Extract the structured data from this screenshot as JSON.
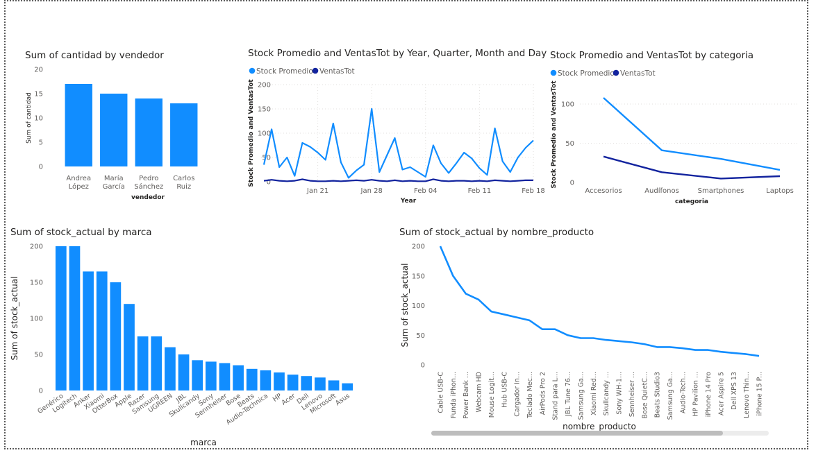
{
  "colors": {
    "series1": "#118DFF",
    "series2": "#12239E",
    "grid": "#e1dfdd",
    "scrollbar": "#bdbdbd",
    "scrolltrack": "#ececec"
  },
  "chart_data": [
    {
      "id": "c1",
      "type": "bar",
      "title": "Sum of cantidad by vendedor",
      "xlabel": "vendedor",
      "ylabel": "Sum of cantidad",
      "ylim": [
        0,
        20
      ],
      "yticks": [
        0,
        5,
        10,
        15,
        20
      ],
      "categories": [
        "Andrea López",
        "María García",
        "Pedro Sánchez",
        "Carlos Ruiz"
      ],
      "category_lines": [
        [
          "Andrea",
          "López"
        ],
        [
          "María",
          "García"
        ],
        [
          "Pedro",
          "Sánchez"
        ],
        [
          "Carlos",
          "Ruiz"
        ]
      ],
      "values": [
        17,
        15,
        14,
        13
      ],
      "grid": false
    },
    {
      "id": "c2",
      "type": "line",
      "title": "Stock Promedio and VentasTot by Year, Quarter, Month and Day",
      "xlabel": "Year",
      "ylabel": "Stock Promedio and VentasTot",
      "ylim": [
        0,
        200
      ],
      "yticks": [
        0,
        50,
        100,
        150,
        200
      ],
      "legend": "top-left",
      "xticks": [
        "Jan 21",
        "Jan 28",
        "Feb 04",
        "Feb 11",
        "Feb 18"
      ],
      "x": [
        "Jan 14",
        "Jan 15",
        "Jan 16",
        "Jan 17",
        "Jan 18",
        "Jan 19",
        "Jan 20",
        "Jan 21",
        "Jan 22",
        "Jan 23",
        "Jan 24",
        "Jan 25",
        "Jan 26",
        "Jan 27",
        "Jan 28",
        "Jan 29",
        "Jan 30",
        "Jan 31",
        "Feb 01",
        "Feb 02",
        "Feb 03",
        "Feb 04",
        "Feb 05",
        "Feb 06",
        "Feb 07",
        "Feb 08",
        "Feb 09",
        "Feb 10",
        "Feb 11",
        "Feb 12",
        "Feb 13",
        "Feb 14",
        "Feb 15",
        "Feb 16",
        "Feb 17",
        "Feb 18"
      ],
      "series": [
        {
          "name": "Stock Promedio",
          "color": "#118DFF",
          "values": [
            35,
            108,
            30,
            50,
            12,
            80,
            72,
            60,
            45,
            120,
            40,
            8,
            23,
            35,
            150,
            20,
            55,
            90,
            25,
            30,
            20,
            10,
            75,
            38,
            18,
            38,
            60,
            48,
            28,
            14,
            110,
            42,
            20,
            50,
            70,
            85
          ]
        },
        {
          "name": "VentasTot",
          "color": "#12239E",
          "values": [
            2,
            4,
            2,
            1,
            2,
            5,
            2,
            1,
            1,
            2,
            1,
            2,
            3,
            2,
            4,
            2,
            1,
            3,
            1,
            2,
            1,
            1,
            5,
            2,
            1,
            2,
            2,
            1,
            2,
            1,
            3,
            2,
            1,
            2,
            3,
            3
          ]
        }
      ],
      "grid": true
    },
    {
      "id": "c3",
      "type": "line",
      "title": "Stock Promedio and VentasTot by categoria",
      "xlabel": "categoria",
      "ylabel": "Stock Promedio and VentasTot",
      "ylim": [
        0,
        120
      ],
      "yticks": [
        0,
        50,
        100
      ],
      "legend": "top-left",
      "categories": [
        "Accesorios",
        "Audífonos",
        "Smartphones",
        "Laptops"
      ],
      "series": [
        {
          "name": "Stock Promedio",
          "color": "#118DFF",
          "values": [
            108,
            41,
            30,
            16
          ]
        },
        {
          "name": "VentasTot",
          "color": "#12239E",
          "values": [
            33,
            13,
            5,
            8
          ]
        }
      ],
      "grid": true
    },
    {
      "id": "c4",
      "type": "bar",
      "title": "Sum of stock_actual by marca",
      "xlabel": "marca",
      "ylabel": "Sum of stock_actual",
      "ylim": [
        0,
        200
      ],
      "yticks": [
        0,
        50,
        100,
        150,
        200
      ],
      "categories": [
        "Genérico",
        "Logitech",
        "Anker",
        "Xiaomi",
        "OtterBox",
        "Apple",
        "Razer",
        "Samsung",
        "UGREEN",
        "JBL",
        "Skullcandy",
        "Sony",
        "Sennheiser",
        "Bose",
        "Beats",
        "Audio-Technica",
        "HP",
        "Acer",
        "Dell",
        "Lenovo",
        "Microsoft",
        "Asus"
      ],
      "values": [
        200,
        200,
        165,
        165,
        150,
        120,
        75,
        75,
        60,
        50,
        42,
        40,
        38,
        35,
        30,
        28,
        25,
        22,
        20,
        18,
        14,
        10
      ],
      "grid": false
    },
    {
      "id": "c5",
      "type": "line",
      "title": "Sum of stock_actual by nombre_producto",
      "xlabel": "nombre_producto",
      "ylabel": "Sum of stock_actual",
      "ylim": [
        0,
        200
      ],
      "yticks": [
        0,
        50,
        100,
        150,
        200
      ],
      "categories": [
        "Cable USB-C",
        "Funda iPhon...",
        "Power Bank ...",
        "Webcam HD",
        "Mouse Logit...",
        "Hub USB-C",
        "Cargador In...",
        "Teclado Mec...",
        "AirPods Pro 2",
        "Stand para L...",
        "JBL Tune 76...",
        "Samsung Ga...",
        "Xiaomi Red...",
        "Skullcandy ...",
        "Sony WH-1...",
        "Sennheiser ...",
        "Bose QuietC...",
        "Beats Studio3",
        "Samsung Ga...",
        "Audio-Tech...",
        "HP Pavilion ...",
        "iPhone 14 Pro",
        "Acer Aspire 5",
        "Dell XPS 13",
        "Lenovo Thin...",
        "iPhone 15 P..."
      ],
      "values": [
        200,
        150,
        120,
        110,
        90,
        85,
        80,
        75,
        60,
        60,
        50,
        45,
        45,
        42,
        40,
        38,
        35,
        30,
        30,
        28,
        25,
        25,
        22,
        20,
        18,
        15
      ],
      "grid": false
    }
  ]
}
